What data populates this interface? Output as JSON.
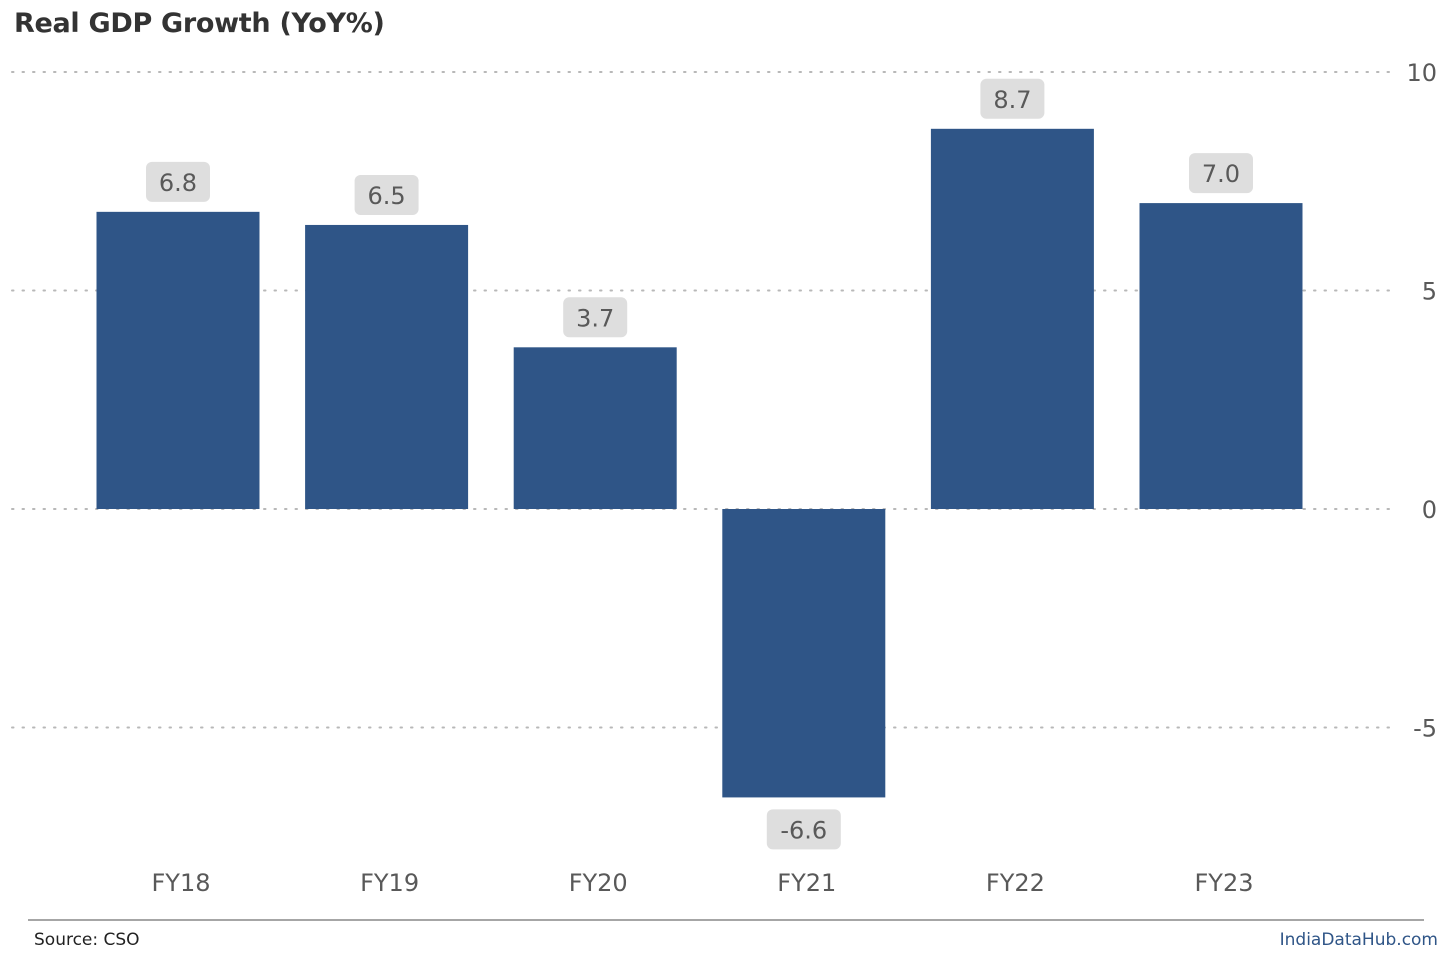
{
  "chart_data": {
    "type": "bar",
    "title": "Real GDP Growth (YoY%)",
    "categories": [
      "FY18",
      "FY19",
      "FY20",
      "FY21",
      "FY22",
      "FY23"
    ],
    "values": [
      6.8,
      6.5,
      3.7,
      -6.6,
      8.7,
      7.0
    ],
    "value_labels": [
      "6.8",
      "6.5",
      "3.7",
      "-6.6",
      "8.7",
      "7.0"
    ],
    "yticks": [
      10,
      5,
      0,
      -5
    ],
    "ytick_labels": [
      "10",
      "5",
      "0",
      "-5"
    ],
    "ylim": [
      -8.3,
      10
    ],
    "y_axis_position": "right",
    "grid": "dotted horizontal",
    "bar_color": "#2f5587",
    "label_bg": "#dedede"
  },
  "footer": {
    "source": "Source: CSO",
    "brand": "IndiaDataHub.com",
    "brand_color": "#2f5587"
  }
}
